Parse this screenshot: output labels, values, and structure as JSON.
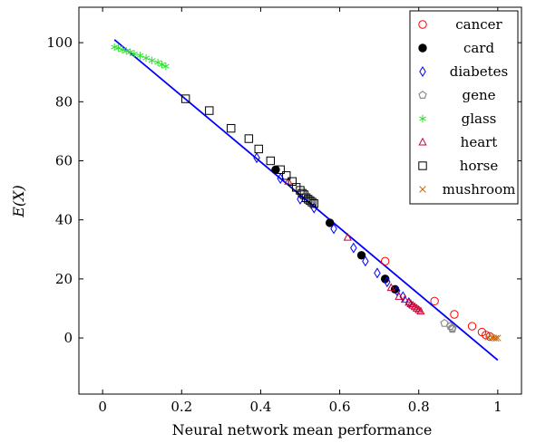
{
  "chart_data": {
    "type": "scatter",
    "title": "",
    "xlabel": "Neural network mean performance",
    "ylabel": "E(X)",
    "xlim": [
      -0.06,
      1.06
    ],
    "ylim": [
      -19,
      112
    ],
    "xticks": [
      0,
      0.2,
      0.4,
      0.6,
      0.8,
      1
    ],
    "xtick_labels": [
      "0",
      "0.2",
      "0.4",
      "0.6",
      "0.8",
      "1"
    ],
    "yticks": [
      0,
      20,
      40,
      60,
      80,
      100
    ],
    "ytick_labels": [
      "0",
      "20",
      "40",
      "60",
      "80",
      "100"
    ],
    "grid": false,
    "legend_position": "top-right",
    "series": [
      {
        "name": "cancer",
        "marker": "circle-open",
        "color": "#ff0000",
        "points": [
          [
            0.715,
            26
          ],
          [
            0.84,
            12.5
          ],
          [
            0.89,
            8
          ],
          [
            0.935,
            4
          ],
          [
            0.96,
            2
          ],
          [
            0.97,
            1
          ],
          [
            0.98,
            0.5
          ]
        ]
      },
      {
        "name": "card",
        "marker": "circle-filled",
        "color": "#000000",
        "points": [
          [
            0.438,
            57
          ],
          [
            0.575,
            39
          ],
          [
            0.655,
            28
          ],
          [
            0.715,
            20
          ],
          [
            0.74,
            16.5
          ]
        ]
      },
      {
        "name": "diabetes",
        "marker": "diamond-open",
        "color": "#0000ff",
        "points": [
          [
            0.39,
            61
          ],
          [
            0.45,
            54
          ],
          [
            0.5,
            47
          ],
          [
            0.535,
            44
          ],
          [
            0.585,
            37
          ],
          [
            0.635,
            30.5
          ],
          [
            0.665,
            26
          ],
          [
            0.695,
            22
          ],
          [
            0.72,
            19
          ],
          [
            0.745,
            16
          ],
          [
            0.76,
            14
          ],
          [
            0.775,
            12
          ]
        ]
      },
      {
        "name": "gene",
        "marker": "pentagon-open",
        "color": "#8c8c8c",
        "points": [
          [
            0.865,
            5
          ],
          [
            0.88,
            4
          ],
          [
            0.885,
            3.5
          ],
          [
            0.885,
            3.2
          ],
          [
            0.885,
            3
          ]
        ]
      },
      {
        "name": "glass",
        "marker": "star",
        "color": "#33dd33",
        "points": [
          [
            0.03,
            98.5
          ],
          [
            0.04,
            98.2
          ],
          [
            0.05,
            97.6
          ],
          [
            0.06,
            97.2
          ],
          [
            0.07,
            96.8
          ],
          [
            0.08,
            96.2
          ],
          [
            0.095,
            95.6
          ],
          [
            0.11,
            94.8
          ],
          [
            0.125,
            94
          ],
          [
            0.14,
            93.3
          ],
          [
            0.15,
            92.6
          ],
          [
            0.16,
            92
          ]
        ]
      },
      {
        "name": "heart",
        "marker": "triangle-open",
        "color": "#cc0033",
        "points": [
          [
            0.47,
            53
          ],
          [
            0.62,
            34
          ],
          [
            0.73,
            17
          ],
          [
            0.75,
            14
          ],
          [
            0.765,
            13
          ],
          [
            0.775,
            12
          ],
          [
            0.78,
            11.5
          ],
          [
            0.785,
            11
          ],
          [
            0.79,
            10.5
          ],
          [
            0.795,
            10
          ],
          [
            0.8,
            9.5
          ],
          [
            0.805,
            9
          ]
        ]
      },
      {
        "name": "horse",
        "marker": "square-open",
        "color": "#000000",
        "points": [
          [
            0.21,
            81
          ],
          [
            0.27,
            77
          ],
          [
            0.325,
            71
          ],
          [
            0.37,
            67.5
          ],
          [
            0.395,
            64
          ],
          [
            0.425,
            60
          ],
          [
            0.45,
            57
          ],
          [
            0.465,
            55
          ],
          [
            0.48,
            53
          ],
          [
            0.49,
            51
          ],
          [
            0.5,
            50
          ],
          [
            0.505,
            49
          ],
          [
            0.51,
            48.5
          ],
          [
            0.515,
            47.5
          ],
          [
            0.52,
            47
          ],
          [
            0.525,
            46.5
          ],
          [
            0.53,
            46
          ],
          [
            0.535,
            45.5
          ]
        ]
      },
      {
        "name": "mushroom",
        "marker": "cross",
        "color": "#cc6600",
        "points": [
          [
            0.975,
            0.3
          ],
          [
            0.985,
            0.1
          ],
          [
            0.99,
            0
          ],
          [
            0.995,
            -0.1
          ],
          [
            1.0,
            0
          ]
        ]
      }
    ],
    "fit_line": {
      "color": "#0000ff",
      "x": [
        0.03,
        1.0
      ],
      "y": [
        101,
        -7.5
      ]
    }
  }
}
